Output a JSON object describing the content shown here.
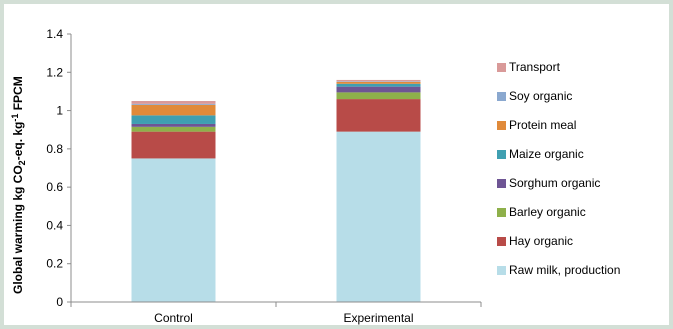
{
  "chart_data": {
    "type": "bar",
    "stacked": true,
    "categories": [
      "Control",
      "Experimental"
    ],
    "ylabel": {
      "pre": "Global warming kg CO",
      "sub": "2",
      "mid": "-eq. kg",
      "sup": "-1",
      "post": " FPCM"
    },
    "ylim": [
      0,
      1.4
    ],
    "yticks": [
      "0",
      "0.2",
      "0.4",
      "0.6",
      "0.8",
      "1",
      "1.2",
      "1.4"
    ],
    "grid": false,
    "legend_position": "right",
    "series": [
      {
        "name": "Raw milk, production",
        "color": "#b7dde8",
        "values": [
          0.75,
          0.89
        ]
      },
      {
        "name": "Hay organic",
        "color": "#b84b48",
        "values": [
          0.14,
          0.17
        ]
      },
      {
        "name": "Barley organic",
        "color": "#8eb04a",
        "values": [
          0.025,
          0.035
        ]
      },
      {
        "name": "Sorghum organic",
        "color": "#6e5594",
        "values": [
          0.015,
          0.03
        ]
      },
      {
        "name": "Maize organic",
        "color": "#3f9fb1",
        "values": [
          0.045,
          0.015
        ]
      },
      {
        "name": "Protein meal",
        "color": "#e08a3a",
        "values": [
          0.055,
          0.01
        ]
      },
      {
        "name": "Soy organic",
        "color": "#8aa8cf",
        "values": [
          0.005,
          0.003
        ]
      },
      {
        "name": "Transport",
        "color": "#d99a99",
        "values": [
          0.015,
          0.007
        ]
      }
    ]
  }
}
